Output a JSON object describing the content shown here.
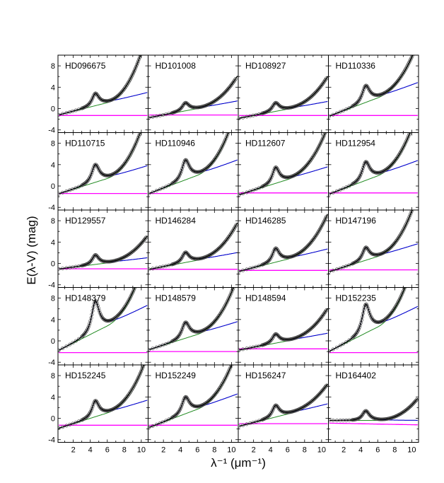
{
  "chart_data": {
    "type": "line",
    "layout": "5x4 small multiples, shared axes",
    "xlabel": "λ⁻¹ (μm⁻¹)",
    "ylabel": "E(λ-V) (mag)",
    "xlim": [
      0.2,
      10.8
    ],
    "ylim": [
      -4.5,
      10
    ],
    "xticks": [
      2,
      4,
      6,
      8,
      10
    ],
    "yticks": [
      -4,
      0,
      4,
      8
    ],
    "series_colors": {
      "observed": "#000000",
      "fit": "#000000",
      "linear_background": "#ff00ff",
      "drude_bump": "#0000cc",
      "far_uv_rise": "#228b22"
    },
    "panels": [
      {
        "name": "HD096675",
        "fit": {
          "c1": -1.3,
          "c2": 0.4,
          "c3": 2.3,
          "c4": 0.6,
          "x0": 4.6,
          "gamma": 1.0,
          "bg_a": -1.3,
          "bg_b": 0.0
        },
        "obs_end": 10.5
      },
      {
        "name": "HD101008",
        "fit": {
          "c1": -1.8,
          "c2": 0.3,
          "c3": 1.5,
          "c4": 0.25,
          "x0": 4.6,
          "gamma": 1.0,
          "bg_a": -1.2,
          "bg_b": 0.0
        },
        "obs_end": 10.5
      },
      {
        "name": "HD108927",
        "fit": {
          "c1": -1.9,
          "c2": 0.3,
          "c3": 1.6,
          "c4": 0.25,
          "x0": 4.6,
          "gamma": 1.0,
          "bg_a": -1.3,
          "bg_b": 0.0
        },
        "obs_end": 10.6
      },
      {
        "name": "HD110336",
        "fit": {
          "c1": -1.6,
          "c2": 0.6,
          "c3": 3.8,
          "c4": 0.4,
          "x0": 4.6,
          "gamma": 1.1,
          "bg_a": -1.3,
          "bg_b": 0.0
        },
        "obs_end": 10.6
      },
      {
        "name": "HD110715",
        "fit": {
          "c1": -1.6,
          "c2": 0.5,
          "c3": 4.0,
          "c4": 0.55,
          "x0": 4.6,
          "gamma": 1.1,
          "bg_a": -1.4,
          "bg_b": 0.0
        },
        "obs_end": 10.0
      },
      {
        "name": "HD110946",
        "fit": {
          "c1": -1.6,
          "c2": 0.6,
          "c3": 4.5,
          "c4": 0.55,
          "x0": 4.6,
          "gamma": 1.1,
          "bg_a": -1.4,
          "bg_b": 0.0
        },
        "obs_end": 10.8
      },
      {
        "name": "HD112607",
        "fit": {
          "c1": -1.8,
          "c2": 0.5,
          "c3": 3.0,
          "c4": 0.4,
          "x0": 4.6,
          "gamma": 1.0,
          "bg_a": -1.3,
          "bg_b": 0.0
        },
        "obs_end": 10.6
      },
      {
        "name": "HD112954",
        "fit": {
          "c1": -1.7,
          "c2": 0.6,
          "c3": 4.2,
          "c4": 0.5,
          "x0": 4.6,
          "gamma": 1.1,
          "bg_a": -1.3,
          "bg_b": 0.0
        },
        "obs_end": 10.6
      },
      {
        "name": "HD129557",
        "fit": {
          "c1": -1.1,
          "c2": 0.2,
          "c3": 1.6,
          "c4": 0.22,
          "x0": 4.6,
          "gamma": 0.95,
          "bg_a": -1.0,
          "bg_b": 0.0
        },
        "obs_end": 10.6
      },
      {
        "name": "HD146284",
        "fit": {
          "c1": -1.2,
          "c2": 0.3,
          "c3": 1.9,
          "c4": 0.3,
          "x0": 4.6,
          "gamma": 1.0,
          "bg_a": -1.1,
          "bg_b": 0.0
        },
        "obs_end": 10.6
      },
      {
        "name": "HD146285",
        "fit": {
          "c1": -1.6,
          "c2": 0.4,
          "c3": 2.6,
          "c4": 0.35,
          "x0": 4.6,
          "gamma": 1.0,
          "bg_a": -1.3,
          "bg_b": 0.0
        },
        "obs_end": 10.6
      },
      {
        "name": "HD147196",
        "fit": {
          "c1": -1.7,
          "c2": 0.5,
          "c3": 2.4,
          "c4": 0.5,
          "x0": 4.6,
          "gamma": 1.0,
          "bg_a": -1.2,
          "bg_b": 0.0
        },
        "obs_end": 10.6
      },
      {
        "name": "HD148379",
        "fit": {
          "c1": -2.0,
          "c2": 0.8,
          "c3": 7.0,
          "c4": 0.55,
          "x0": 4.6,
          "gamma": 1.1,
          "bg_a": -2.2,
          "bg_b": 0.0
        },
        "obs_end": 10.6
      },
      {
        "name": "HD148579",
        "fit": {
          "c1": -1.8,
          "c2": 0.5,
          "c3": 3.6,
          "c4": 0.45,
          "x0": 4.6,
          "gamma": 1.1,
          "bg_a": -2.0,
          "bg_b": 0.0
        },
        "obs_end": 10.6
      },
      {
        "name": "HD148594",
        "fit": {
          "c1": -1.8,
          "c2": 0.3,
          "c3": 1.7,
          "c4": 0.25,
          "x0": 4.6,
          "gamma": 1.0,
          "bg_a": -1.5,
          "bg_b": 0.0
        },
        "obs_end": 10.6
      },
      {
        "name": "HD152235",
        "fit": {
          "c1": -2.2,
          "c2": 0.8,
          "c3": 6.5,
          "c4": 0.6,
          "x0": 4.6,
          "gamma": 1.1,
          "bg_a": -2.2,
          "bg_b": 0.0
        },
        "obs_end": 10.6
      },
      {
        "name": "HD152245",
        "fit": {
          "c1": -2.0,
          "c2": 0.5,
          "c3": 3.0,
          "c4": 0.45,
          "x0": 4.6,
          "gamma": 1.0,
          "bg_a": -1.3,
          "bg_b": 0.0
        },
        "obs_end": 10.6
      },
      {
        "name": "HD152249",
        "fit": {
          "c1": -1.9,
          "c2": 0.6,
          "c3": 3.8,
          "c4": 0.45,
          "x0": 4.6,
          "gamma": 1.1,
          "bg_a": -1.3,
          "bg_b": 0.0
        },
        "obs_end": 10.6
      },
      {
        "name": "HD156247",
        "fit": {
          "c1": -1.6,
          "c2": 0.4,
          "c3": 2.2,
          "c4": 0.2,
          "x0": 4.6,
          "gamma": 1.0,
          "bg_a": -1.0,
          "bg_b": 0.0
        },
        "obs_end": 10.6
      },
      {
        "name": "HD164402",
        "fit": {
          "c1": -0.4,
          "c2": 0.0,
          "c3": 1.8,
          "c4": 0.22,
          "x0": 4.6,
          "gamma": 1.0,
          "bg_a": -0.9,
          "bg_b": -0.03
        },
        "obs_end": 10.6
      }
    ]
  }
}
